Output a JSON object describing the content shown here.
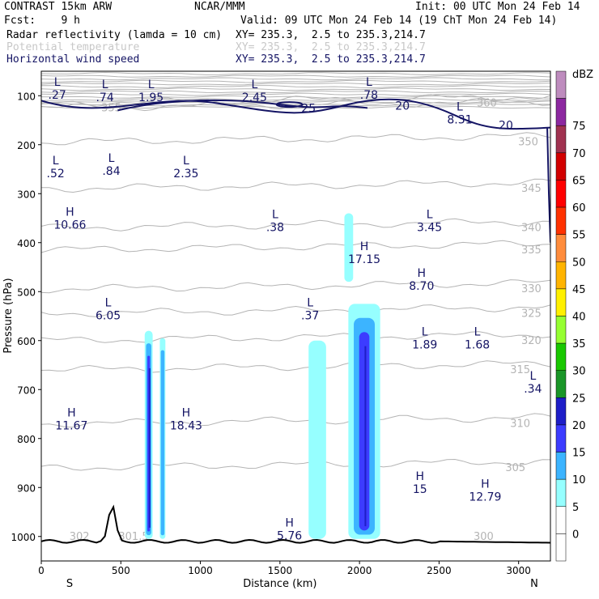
{
  "header": {
    "model": "CONTRAST 15km ARW",
    "org": "NCAR/MMM",
    "init": "Init: 00 UTC Mon 24 Feb 14",
    "fcst": "Fcst:    9 h",
    "valid": "Valid: 09 UTC Mon 24 Feb 14 (19 ChT Mon 24 Feb 14)",
    "fields": [
      {
        "name": "Radar reflectivity (lamda = 10 cm)",
        "xy": "XY= 235.3,  2.5 to 235.3,214.7",
        "color": "#000000"
      },
      {
        "name": "Potential temperature",
        "xy": "XY= 235.3,  2.5 to 235.3,214.7",
        "color": "#c8c8c8"
      },
      {
        "name": "Horizontal wind speed",
        "xy": "XY= 235.3,  2.5 to 235.3,214.7",
        "color": "#141464"
      }
    ]
  },
  "chart_data": {
    "type": "contour",
    "xlabel": "Distance (km)",
    "ylabel": "Pressure (hPa)",
    "xlim": [
      0,
      3200
    ],
    "ylim": [
      1050,
      50
    ],
    "x_ticks": [
      0,
      500,
      1000,
      1500,
      2000,
      2500,
      3000
    ],
    "y_ticks": [
      100,
      200,
      300,
      400,
      500,
      600,
      700,
      800,
      900,
      1000
    ],
    "x_ends": {
      "left": "S",
      "right": "N"
    },
    "colorbar": {
      "unit": "dBZ",
      "levels": [
        "-",
        "0",
        "5",
        "10",
        "15",
        "20",
        "25",
        "30",
        "35",
        "40",
        "45",
        "50",
        "55",
        "60",
        "65",
        "70",
        "75",
        "-"
      ],
      "colors": [
        "#ffffff",
        "#ffffff",
        "#96ffff",
        "#3cb4ff",
        "#3c3cff",
        "#1e1ec8",
        "#1a9628",
        "#19c800",
        "#96ff32",
        "#fff000",
        "#ffb400",
        "#ff8c3c",
        "#ff3200",
        "#ff0000",
        "#d20000",
        "#a03250",
        "#8c28a0",
        "#be8cbe"
      ]
    },
    "theta_contours": {
      "color": "#b4b4b4",
      "levels": [
        {
          "label": "300",
          "p": 1000
        },
        {
          "label": "302",
          "p": 1000
        },
        {
          "label": "301.5",
          "p": 1000
        },
        {
          "label": "305",
          "p": 860
        },
        {
          "label": "310",
          "p": 770
        },
        {
          "label": "315",
          "p": 660
        },
        {
          "label": "320",
          "p": 600
        },
        {
          "label": "325",
          "p": 545
        },
        {
          "label": "330",
          "p": 495
        },
        {
          "label": "335",
          "p": 415
        },
        {
          "label": "340",
          "p": 370
        },
        {
          "label": "345",
          "p": 290
        },
        {
          "label": "350",
          "p": 195
        },
        {
          "label": "355",
          "p": 125
        },
        {
          "label": "360",
          "p": 115
        }
      ]
    },
    "wind_contours": {
      "color": "#141464",
      "labels": [
        {
          "text": "25",
          "x": 1680,
          "p": 125
        },
        {
          "text": "20",
          "x": 2270,
          "p": 120
        },
        {
          "text": "20",
          "x": 2920,
          "p": 160
        }
      ]
    },
    "extrema": [
      {
        "type": "L",
        "value": ".27",
        "x": 100,
        "p": 80
      },
      {
        "type": "L",
        "value": ".74",
        "x": 400,
        "p": 85
      },
      {
        "type": "L",
        "value": "1.95",
        "x": 690,
        "p": 85
      },
      {
        "type": "L",
        "value": "2.45",
        "x": 1340,
        "p": 85
      },
      {
        "type": "L",
        "value": ".78",
        "x": 2060,
        "p": 80
      },
      {
        "type": "L",
        "value": "8.31",
        "x": 2630,
        "p": 130
      },
      {
        "type": "L",
        "value": ".52",
        "x": 90,
        "p": 240
      },
      {
        "type": "L",
        "value": ".84",
        "x": 440,
        "p": 235
      },
      {
        "type": "L",
        "value": "2.35",
        "x": 910,
        "p": 240
      },
      {
        "type": "H",
        "value": "10.66",
        "x": 180,
        "p": 345
      },
      {
        "type": "L",
        "value": ".38",
        "x": 1470,
        "p": 350
      },
      {
        "type": "L",
        "value": "3.45",
        "x": 2440,
        "p": 350
      },
      {
        "type": "H",
        "value": "17.15",
        "x": 2030,
        "p": 415
      },
      {
        "type": "H",
        "value": "8.70",
        "x": 2390,
        "p": 470
      },
      {
        "type": "L",
        "value": "6.05",
        "x": 420,
        "p": 530
      },
      {
        "type": "L",
        "value": ".37",
        "x": 1690,
        "p": 530
      },
      {
        "type": "L",
        "value": "1.89",
        "x": 2410,
        "p": 590
      },
      {
        "type": "L",
        "value": "1.68",
        "x": 2740,
        "p": 590
      },
      {
        "type": "L",
        "value": ".34",
        "x": 3090,
        "p": 680
      },
      {
        "type": "H",
        "value": "11.67",
        "x": 190,
        "p": 755
      },
      {
        "type": "H",
        "value": "18.43",
        "x": 910,
        "p": 755
      },
      {
        "type": "H",
        "value": "15",
        "x": 2380,
        "p": 885
      },
      {
        "type": "H",
        "value": "12.79",
        "x": 2790,
        "p": 900
      },
      {
        "type": "H",
        "value": "5.76",
        "x": 1560,
        "p": 980
      }
    ],
    "reflectivity_cells": [
      {
        "x_km": [
          650,
          700
        ],
        "p_hpa": [
          580,
          1005
        ],
        "max_dbz": 20
      },
      {
        "x_km": [
          745,
          780
        ],
        "p_hpa": [
          595,
          1005
        ],
        "max_dbz": 10
      },
      {
        "x_km": [
          1680,
          1790
        ],
        "p_hpa": [
          600,
          1005
        ],
        "max_dbz": 5
      },
      {
        "x_km": [
          1930,
          2130
        ],
        "p_hpa": [
          525,
          1005
        ],
        "max_dbz": 20
      },
      {
        "x_km": [
          1905,
          1960
        ],
        "p_hpa": [
          340,
          480
        ],
        "max_dbz": 5
      }
    ]
  }
}
